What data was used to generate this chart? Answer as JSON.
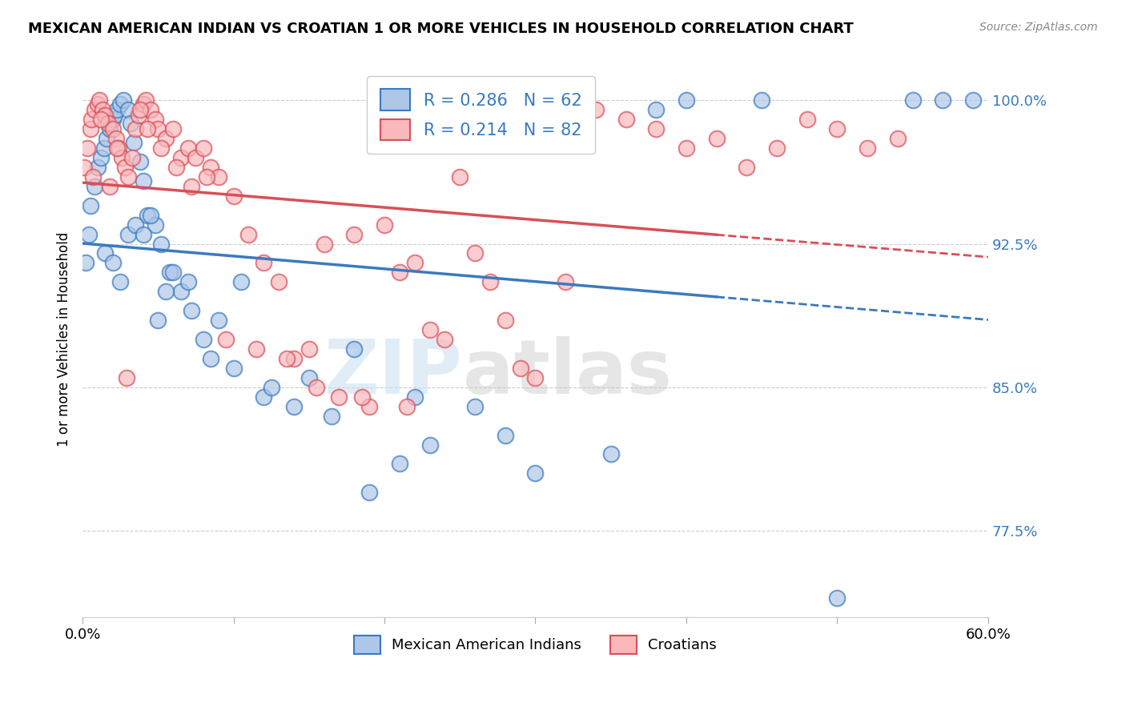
{
  "title": "MEXICAN AMERICAN INDIAN VS CROATIAN 1 OR MORE VEHICLES IN HOUSEHOLD CORRELATION CHART",
  "source": "Source: ZipAtlas.com",
  "ylabel": "1 or more Vehicles in Household",
  "yticks": [
    77.5,
    85.0,
    92.5,
    100.0
  ],
  "legend_label_blue": "Mexican American Indians",
  "legend_label_pink": "Croatians",
  "R_blue": 0.286,
  "N_blue": 62,
  "R_pink": 0.214,
  "N_pink": 82,
  "blue_color": "#aec6e8",
  "pink_color": "#f9b8bc",
  "line_blue": "#3a7abf",
  "line_pink": "#d94f58",
  "watermark_zip": "ZIP",
  "watermark_atlas": "atlas",
  "blue_x": [
    0.2,
    0.4,
    0.5,
    0.8,
    1.0,
    1.2,
    1.4,
    1.6,
    1.8,
    2.0,
    2.1,
    2.3,
    2.5,
    2.7,
    3.0,
    3.2,
    3.4,
    3.8,
    4.0,
    4.3,
    4.8,
    5.2,
    5.8,
    6.5,
    7.2,
    8.0,
    9.0,
    10.5,
    12.0,
    14.0,
    16.5,
    19.0,
    21.0,
    23.0,
    26.0,
    30.0,
    35.0,
    40.0,
    45.0,
    50.0,
    55.0,
    57.0,
    59.0,
    1.5,
    2.0,
    2.5,
    3.0,
    3.5,
    4.0,
    4.5,
    5.0,
    5.5,
    6.0,
    7.0,
    8.5,
    10.0,
    12.5,
    15.0,
    18.0,
    22.0,
    28.0,
    38.0
  ],
  "blue_y": [
    91.5,
    93.0,
    94.5,
    95.5,
    96.5,
    97.0,
    97.5,
    98.0,
    98.5,
    99.0,
    99.2,
    99.5,
    99.8,
    100.0,
    99.5,
    98.8,
    97.8,
    96.8,
    95.8,
    94.0,
    93.5,
    92.5,
    91.0,
    90.0,
    89.0,
    87.5,
    88.5,
    90.5,
    84.5,
    84.0,
    83.5,
    79.5,
    81.0,
    82.0,
    84.0,
    80.5,
    81.5,
    100.0,
    100.0,
    74.0,
    100.0,
    100.0,
    100.0,
    92.0,
    91.5,
    90.5,
    93.0,
    93.5,
    93.0,
    94.0,
    88.5,
    90.0,
    91.0,
    90.5,
    86.5,
    86.0,
    85.0,
    85.5,
    87.0,
    84.5,
    82.5,
    99.5
  ],
  "pink_x": [
    0.1,
    0.3,
    0.5,
    0.6,
    0.8,
    1.0,
    1.1,
    1.3,
    1.5,
    1.7,
    2.0,
    2.2,
    2.4,
    2.6,
    2.8,
    3.0,
    3.3,
    3.5,
    3.7,
    4.0,
    4.2,
    4.5,
    4.8,
    5.0,
    5.5,
    6.0,
    6.5,
    7.0,
    7.5,
    8.0,
    8.5,
    9.0,
    10.0,
    11.0,
    12.0,
    13.0,
    14.0,
    15.0,
    16.0,
    17.0,
    18.0,
    19.0,
    20.0,
    21.0,
    22.0,
    23.0,
    24.0,
    25.0,
    26.0,
    27.0,
    28.0,
    29.0,
    30.0,
    32.0,
    34.0,
    36.0,
    38.0,
    40.0,
    42.0,
    44.0,
    46.0,
    48.0,
    50.0,
    52.0,
    54.0,
    0.7,
    1.2,
    1.8,
    2.3,
    2.9,
    3.8,
    4.3,
    5.2,
    6.2,
    7.2,
    8.2,
    9.5,
    11.5,
    13.5,
    15.5,
    18.5,
    21.5
  ],
  "pink_y": [
    96.5,
    97.5,
    98.5,
    99.0,
    99.5,
    99.8,
    100.0,
    99.5,
    99.2,
    98.8,
    98.5,
    98.0,
    97.5,
    97.0,
    96.5,
    96.0,
    97.0,
    98.5,
    99.2,
    99.8,
    100.0,
    99.5,
    99.0,
    98.5,
    98.0,
    98.5,
    97.0,
    97.5,
    97.0,
    97.5,
    96.5,
    96.0,
    95.0,
    93.0,
    91.5,
    90.5,
    86.5,
    87.0,
    92.5,
    84.5,
    93.0,
    84.0,
    93.5,
    91.0,
    91.5,
    88.0,
    87.5,
    96.0,
    92.0,
    90.5,
    88.5,
    86.0,
    85.5,
    90.5,
    99.5,
    99.0,
    98.5,
    97.5,
    98.0,
    96.5,
    97.5,
    99.0,
    98.5,
    97.5,
    98.0,
    96.0,
    99.0,
    95.5,
    97.5,
    85.5,
    99.5,
    98.5,
    97.5,
    96.5,
    95.5,
    96.0,
    87.5,
    87.0,
    86.5,
    85.0,
    84.5,
    84.0
  ]
}
